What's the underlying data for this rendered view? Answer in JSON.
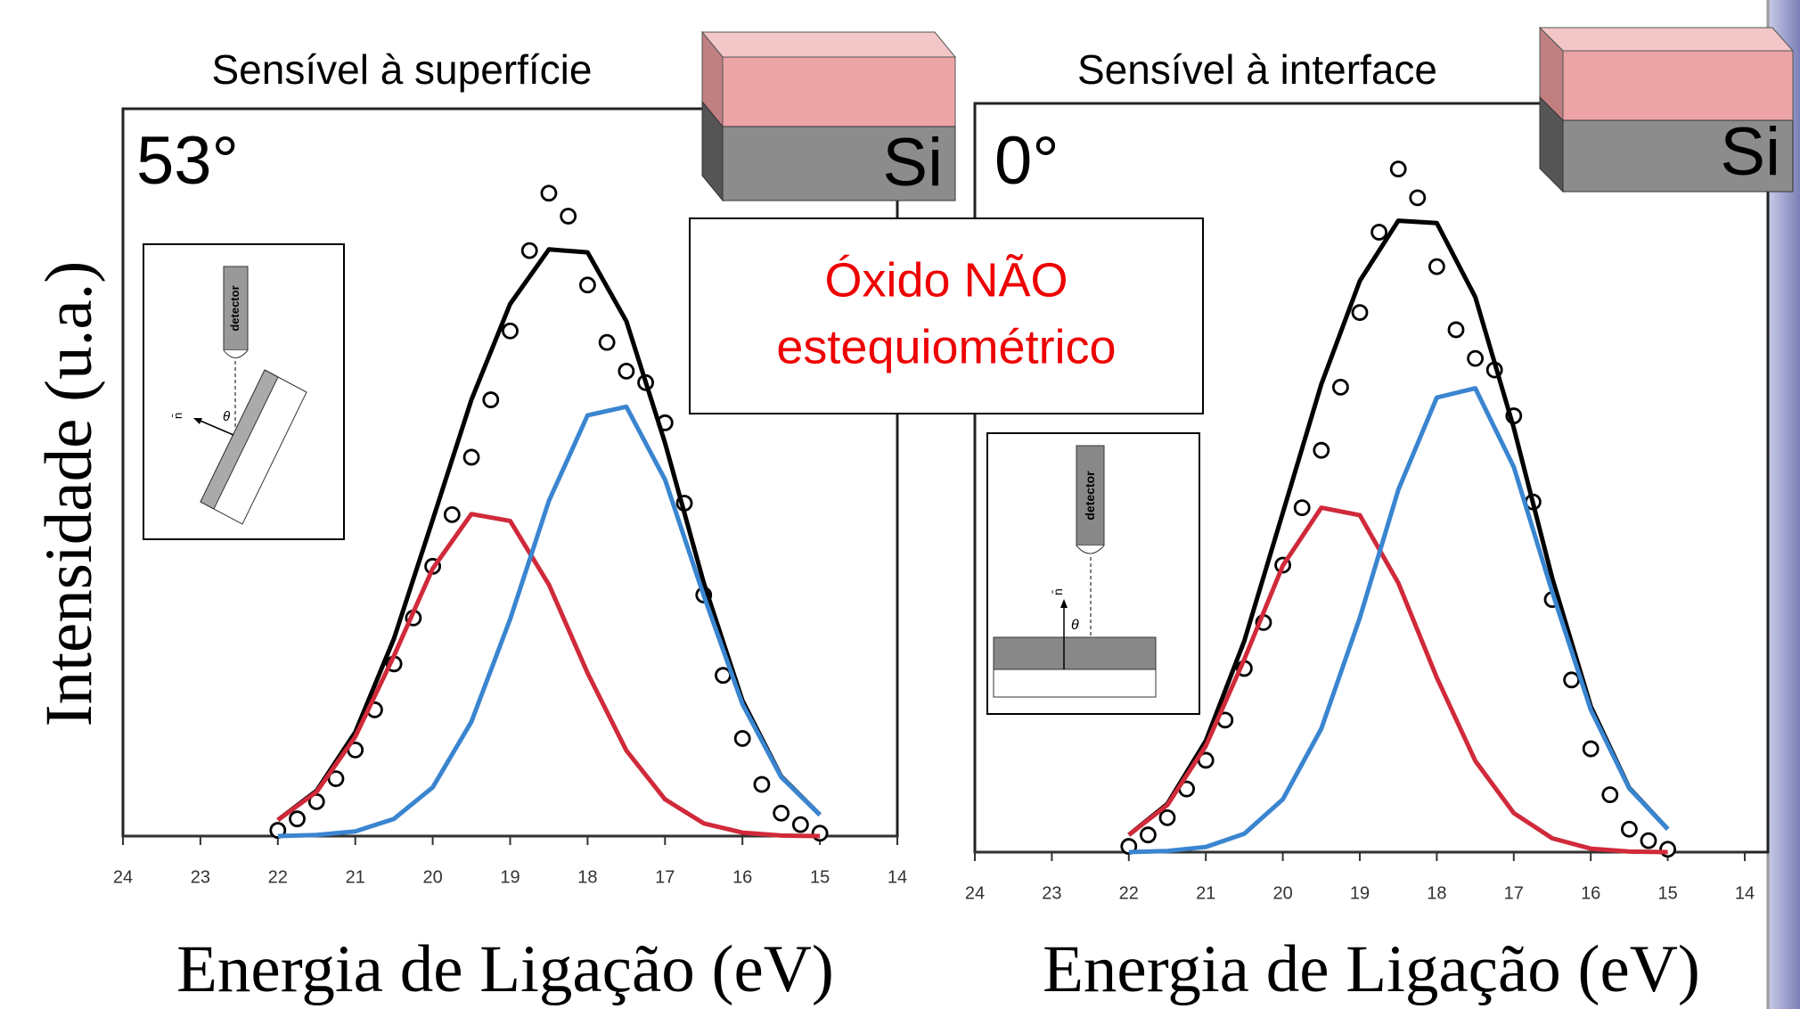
{
  "callout": {
    "lines": [
      "Óxido NÃO",
      "estequiométrico"
    ]
  },
  "chart_data": [
    {
      "type": "line",
      "title": "Sensível à superfície",
      "angle_label": "53°",
      "sample_label": "Si",
      "inset_labels": [
        "detector",
        "θ",
        "n̄"
      ],
      "y_label": "Intensidade (u.a.)",
      "x_label": "Energia de Ligação (eV)",
      "xlim": [
        24,
        14
      ],
      "xticks": [
        24,
        23,
        22,
        21,
        20,
        19,
        18,
        17,
        16,
        15,
        14
      ],
      "ylim": [
        0,
        125
      ],
      "series": [
        {
          "style": "markers",
          "color": "#000000",
          "x": [
            22,
            21.75,
            21.5,
            21.25,
            21,
            20.75,
            20.5,
            20.25,
            20,
            19.75,
            19.5,
            19.25,
            19,
            18.75,
            18.5,
            18.25,
            18,
            17.75,
            17.5,
            17.25,
            17,
            16.75,
            16.5,
            16.25,
            16,
            15.75,
            15.5,
            15.25,
            15
          ],
          "values": [
            1,
            3,
            6,
            10,
            15,
            22,
            30,
            38,
            47,
            56,
            66,
            76,
            88,
            102,
            112,
            108,
            96,
            86,
            81,
            79,
            72,
            58,
            42,
            28,
            17,
            9,
            4,
            2,
            0.5
          ]
        },
        {
          "style": "line",
          "color": "#000000",
          "x": [
            22,
            21.5,
            21,
            20.5,
            20,
            19.5,
            19,
            18.5,
            18,
            17.5,
            17,
            16.5,
            16,
            15.5,
            15
          ],
          "values": [
            2.8,
            7.9,
            18.1,
            34.4,
            55.1,
            76.0,
            92.7,
            102.2,
            101.7,
            89.7,
            68.5,
            44.1,
            23.6,
            10.4,
            3.7
          ]
        },
        {
          "style": "line",
          "color": "#d02a3a",
          "x": [
            22,
            21.5,
            21,
            20.5,
            20,
            19.5,
            19,
            18.5,
            18,
            17.5,
            17,
            16.5,
            16,
            15.5,
            15
          ],
          "values": [
            2.8,
            7.7,
            17.3,
            31.4,
            46.6,
            56.1,
            54.9,
            43.8,
            28.4,
            14.9,
            6.4,
            2.2,
            0.6,
            0.1,
            0
          ]
        },
        {
          "style": "line",
          "color": "#3a85d0",
          "x": [
            22,
            21.5,
            21,
            20.5,
            20,
            19.5,
            19,
            18.5,
            18,
            17.5,
            17,
            16.5,
            16,
            15.5,
            15
          ],
          "values": [
            0,
            0.2,
            0.8,
            3.0,
            8.5,
            19.9,
            37.8,
            58.4,
            73.3,
            74.8,
            62.1,
            41.9,
            23.0,
            10.3,
            3.7
          ]
        }
      ]
    },
    {
      "type": "line",
      "title": "Sensível à interface",
      "angle_label": "0°",
      "sample_label": "Si",
      "inset_labels": [
        "detector",
        "θ",
        "n̄"
      ],
      "x_label": "Energia de Ligação (eV)",
      "xlim": [
        24,
        14
      ],
      "xticks": [
        24,
        23,
        22,
        21,
        20,
        19,
        18,
        17,
        16,
        15,
        14
      ],
      "ylim": [
        0,
        125
      ],
      "series": [
        {
          "style": "markers",
          "color": "#000000",
          "x": [
            22,
            21.75,
            21.5,
            21.25,
            21,
            20.75,
            20.5,
            20.25,
            20,
            19.75,
            19.5,
            19.25,
            19,
            18.75,
            18.5,
            18.25,
            18,
            17.75,
            17.5,
            17.25,
            17,
            16.75,
            16.5,
            16.25,
            16,
            15.75,
            15.5,
            15.25,
            15
          ],
          "values": [
            1,
            3,
            6,
            11,
            16,
            23,
            32,
            40,
            50,
            60,
            70,
            81,
            94,
            108,
            119,
            114,
            102,
            91,
            86,
            84,
            76,
            61,
            44,
            30,
            18,
            10,
            4,
            2,
            0.5
          ]
        },
        {
          "style": "line",
          "color": "#000000",
          "x": [
            22,
            21.5,
            21,
            20.5,
            20,
            19.5,
            19,
            18.5,
            18,
            17.5,
            17,
            16.5,
            16,
            15.5,
            15
          ],
          "values": [
            3.0,
            8.4,
            19.4,
            36.8,
            59.1,
            81.5,
            99.5,
            110.0,
            109.6,
            96.7,
            73.9,
            47.7,
            25.4,
            11.2,
            4.0
          ]
        },
        {
          "style": "line",
          "color": "#d02a3a",
          "x": [
            22,
            21.5,
            21,
            20.5,
            20,
            19.5,
            19,
            18.5,
            18,
            17.5,
            17,
            16.5,
            16,
            15.5,
            15
          ],
          "values": [
            3.0,
            8.2,
            18.5,
            33.6,
            49.9,
            60.0,
            58.7,
            46.9,
            30.4,
            15.9,
            6.8,
            2.4,
            0.6,
            0.1,
            0
          ]
        },
        {
          "style": "line",
          "color": "#3a85d0",
          "x": [
            22,
            21.5,
            21,
            20.5,
            20,
            19.5,
            19,
            18.5,
            18,
            17.5,
            17,
            16.5,
            16,
            15.5,
            15
          ],
          "values": [
            0,
            0.2,
            0.9,
            3.2,
            9.2,
            21.5,
            40.8,
            63.1,
            79.2,
            80.8,
            67.1,
            45.3,
            24.8,
            11.1,
            4.0
          ]
        }
      ]
    }
  ]
}
